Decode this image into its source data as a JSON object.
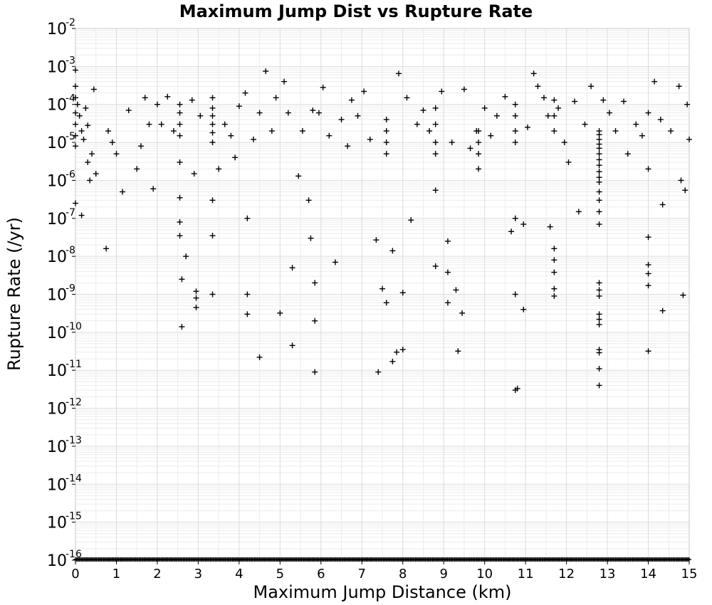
{
  "chart_data": {
    "type": "scatter",
    "title": "Maximum Jump Dist vs Rupture Rate",
    "xlabel": "Maximum Jump Distance (km)",
    "ylabel": "Rupture Rate (/yr)",
    "xlim": [
      0,
      15
    ],
    "ylim": [
      1e-16,
      0.01
    ],
    "yscale": "log",
    "grid": true,
    "legend": "none",
    "marker": "plus",
    "marker_color": "#000000",
    "x_ticks": [
      "0",
      "1",
      "2",
      "3",
      "4",
      "5",
      "6",
      "7",
      "8",
      "9",
      "10",
      "11",
      "12",
      "13",
      "14",
      "15"
    ],
    "y_ticks": [
      {
        "base": "10",
        "exp": "-2"
      },
      {
        "base": "10",
        "exp": "-3"
      },
      {
        "base": "10",
        "exp": "-4"
      },
      {
        "base": "10",
        "exp": "-5"
      },
      {
        "base": "10",
        "exp": "-6"
      },
      {
        "base": "10",
        "exp": "-7"
      },
      {
        "base": "10",
        "exp": "-8"
      },
      {
        "base": "10",
        "exp": "-9"
      },
      {
        "base": "10",
        "exp": "-10"
      },
      {
        "base": "10",
        "exp": "-11"
      },
      {
        "base": "10",
        "exp": "-12"
      },
      {
        "base": "10",
        "exp": "-13"
      },
      {
        "base": "10",
        "exp": "-14"
      },
      {
        "base": "10",
        "exp": "-15"
      },
      {
        "base": "10",
        "exp": "-16"
      }
    ],
    "points": [
      [
        0.0,
        0.0008
      ],
      [
        0.0,
        0.0003
      ],
      [
        0.0,
        0.00015
      ],
      [
        0.0,
        6e-05
      ],
      [
        0.0,
        3e-05
      ],
      [
        0.0,
        1.5e-05
      ],
      [
        0.0,
        8e-06
      ],
      [
        0.0,
        2.5e-07
      ],
      [
        0.05,
        0.0001
      ],
      [
        0.1,
        5e-05
      ],
      [
        0.15,
        2e-05
      ],
      [
        0.2,
        1.2e-05
      ],
      [
        0.25,
        8e-05
      ],
      [
        0.3,
        3e-06
      ],
      [
        0.35,
        1e-06
      ],
      [
        0.4,
        5e-06
      ],
      [
        0.45,
        0.00025
      ],
      [
        0.5,
        1.5e-06
      ],
      [
        0.15,
        1.2e-07
      ],
      [
        0.3,
        2.8e-05
      ],
      [
        0.75,
        1.6e-08
      ],
      [
        0.8,
        2e-05
      ],
      [
        0.9,
        1e-05
      ],
      [
        1.0,
        5e-06
      ],
      [
        1.15,
        5e-07
      ],
      [
        1.3,
        7e-05
      ],
      [
        1.5,
        2e-06
      ],
      [
        1.6,
        8e-06
      ],
      [
        1.7,
        0.00015
      ],
      [
        1.8,
        3e-05
      ],
      [
        1.9,
        6e-07
      ],
      [
        2.0,
        0.0001
      ],
      [
        2.1,
        3e-05
      ],
      [
        2.25,
        0.00016
      ],
      [
        2.4,
        2e-05
      ],
      [
        2.55,
        0.0001
      ],
      [
        2.55,
        6e-05
      ],
      [
        2.55,
        3e-05
      ],
      [
        2.55,
        1.5e-05
      ],
      [
        2.55,
        3e-06
      ],
      [
        2.55,
        3.5e-07
      ],
      [
        2.55,
        8e-08
      ],
      [
        2.55,
        3.5e-08
      ],
      [
        2.6,
        2.5e-09
      ],
      [
        2.6,
        1.4e-10
      ],
      [
        2.7,
        1e-08
      ],
      [
        2.85,
        0.00013
      ],
      [
        2.9,
        1.5e-06
      ],
      [
        2.95,
        1.2e-09
      ],
      [
        2.95,
        8e-10
      ],
      [
        2.95,
        4.5e-10
      ],
      [
        3.05,
        5e-05
      ],
      [
        3.35,
        0.00015
      ],
      [
        3.35,
        8e-05
      ],
      [
        3.35,
        5e-05
      ],
      [
        3.35,
        3e-05
      ],
      [
        3.35,
        1.8e-05
      ],
      [
        3.35,
        1e-05
      ],
      [
        3.35,
        3e-07
      ],
      [
        3.35,
        3.5e-08
      ],
      [
        3.35,
        1e-09
      ],
      [
        3.5,
        2e-06
      ],
      [
        3.65,
        3e-05
      ],
      [
        3.8,
        1.5e-05
      ],
      [
        3.9,
        4e-06
      ],
      [
        4.0,
        9e-05
      ],
      [
        4.15,
        0.0002
      ],
      [
        4.2,
        1e-09
      ],
      [
        4.2,
        3e-10
      ],
      [
        4.2,
        1e-07
      ],
      [
        4.35,
        1.2e-05
      ],
      [
        4.5,
        6e-05
      ],
      [
        4.5,
        2.2e-11
      ],
      [
        4.65,
        0.00075
      ],
      [
        4.8,
        2e-05
      ],
      [
        4.9,
        0.00015
      ],
      [
        5.0,
        3.2e-10
      ],
      [
        5.1,
        0.0004
      ],
      [
        5.2,
        6e-05
      ],
      [
        5.3,
        5e-09
      ],
      [
        5.3,
        4.5e-11
      ],
      [
        5.45,
        1.3e-06
      ],
      [
        5.55,
        2e-05
      ],
      [
        5.7,
        3e-07
      ],
      [
        5.75,
        3e-08
      ],
      [
        5.8,
        7e-05
      ],
      [
        5.85,
        2e-09
      ],
      [
        5.85,
        2e-10
      ],
      [
        5.85,
        9e-12
      ],
      [
        5.95,
        6e-05
      ],
      [
        6.05,
        0.00028
      ],
      [
        6.2,
        1.5e-05
      ],
      [
        6.35,
        7e-09
      ],
      [
        6.5,
        4e-05
      ],
      [
        6.65,
        8e-06
      ],
      [
        6.75,
        0.00013
      ],
      [
        6.9,
        5e-05
      ],
      [
        7.05,
        0.00022
      ],
      [
        7.2,
        1.2e-05
      ],
      [
        7.35,
        2.7e-08
      ],
      [
        7.4,
        9e-12
      ],
      [
        7.5,
        1.4e-09
      ],
      [
        7.6,
        4e-05
      ],
      [
        7.6,
        2e-05
      ],
      [
        7.6,
        1e-05
      ],
      [
        7.6,
        5e-06
      ],
      [
        7.6,
        6e-10
      ],
      [
        7.75,
        1.4e-08
      ],
      [
        7.75,
        1.7e-11
      ],
      [
        7.85,
        3e-11
      ],
      [
        7.9,
        0.00065
      ],
      [
        8.0,
        1.1e-09
      ],
      [
        8.0,
        3.5e-11
      ],
      [
        8.1,
        0.00015
      ],
      [
        8.2,
        9e-08
      ],
      [
        8.35,
        3e-05
      ],
      [
        8.5,
        7e-05
      ],
      [
        8.65,
        2e-05
      ],
      [
        8.8,
        8e-05
      ],
      [
        8.8,
        3e-05
      ],
      [
        8.8,
        1e-05
      ],
      [
        8.8,
        5e-06
      ],
      [
        8.8,
        5.5e-07
      ],
      [
        8.8,
        5.5e-09
      ],
      [
        8.95,
        0.00022
      ],
      [
        9.1,
        2.5e-08
      ],
      [
        9.1,
        6e-10
      ],
      [
        9.1,
        3.8e-09
      ],
      [
        9.2,
        1e-05
      ],
      [
        9.3,
        1.3e-09
      ],
      [
        9.35,
        3.2e-11
      ],
      [
        9.45,
        3.2e-10
      ],
      [
        9.5,
        0.00025
      ],
      [
        9.65,
        7e-06
      ],
      [
        9.8,
        2e-05
      ],
      [
        9.85,
        2e-05
      ],
      [
        9.85,
        1e-05
      ],
      [
        9.85,
        5e-06
      ],
      [
        9.85,
        2e-06
      ],
      [
        10.0,
        8e-05
      ],
      [
        10.15,
        1.5e-05
      ],
      [
        10.3,
        5e-05
      ],
      [
        10.5,
        0.00016
      ],
      [
        10.65,
        4.5e-08
      ],
      [
        10.75,
        0.0001
      ],
      [
        10.75,
        5e-05
      ],
      [
        10.75,
        2e-05
      ],
      [
        10.75,
        1e-05
      ],
      [
        10.75,
        1e-07
      ],
      [
        10.75,
        1e-09
      ],
      [
        10.75,
        3e-12
      ],
      [
        10.8,
        3.3e-12
      ],
      [
        10.95,
        4e-10
      ],
      [
        10.95,
        7e-08
      ],
      [
        11.05,
        2.5e-05
      ],
      [
        11.2,
        0.00065
      ],
      [
        11.3,
        0.0003
      ],
      [
        11.45,
        0.00015
      ],
      [
        11.55,
        5e-05
      ],
      [
        11.6,
        6e-08
      ],
      [
        11.7,
        0.00013
      ],
      [
        11.7,
        5e-05
      ],
      [
        11.7,
        2e-05
      ],
      [
        11.7,
        1.6e-08
      ],
      [
        11.7,
        8e-09
      ],
      [
        11.7,
        3.8e-09
      ],
      [
        11.7,
        1.4e-09
      ],
      [
        11.7,
        9e-10
      ],
      [
        11.8,
        8e-05
      ],
      [
        11.95,
        1e-05
      ],
      [
        12.05,
        3e-06
      ],
      [
        12.2,
        0.00012
      ],
      [
        12.3,
        1.5e-07
      ],
      [
        12.45,
        3e-05
      ],
      [
        12.6,
        0.0003
      ],
      [
        12.8,
        2e-05
      ],
      [
        12.8,
        1.6e-05
      ],
      [
        12.8,
        1.2e-05
      ],
      [
        12.8,
        9e-06
      ],
      [
        12.8,
        7e-06
      ],
      [
        12.8,
        5e-06
      ],
      [
        12.8,
        3.5e-06
      ],
      [
        12.8,
        2.5e-06
      ],
      [
        12.8,
        1.7e-06
      ],
      [
        12.8,
        1.2e-06
      ],
      [
        12.8,
        9e-07
      ],
      [
        12.8,
        5e-07
      ],
      [
        12.8,
        3e-07
      ],
      [
        12.8,
        1.5e-07
      ],
      [
        12.8,
        7e-08
      ],
      [
        12.8,
        2e-09
      ],
      [
        12.8,
        1.3e-09
      ],
      [
        12.8,
        9e-10
      ],
      [
        12.8,
        3e-10
      ],
      [
        12.8,
        2.2e-10
      ],
      [
        12.8,
        1.6e-10
      ],
      [
        12.8,
        3.5e-11
      ],
      [
        12.8,
        2.9e-11
      ],
      [
        12.8,
        1.1e-11
      ],
      [
        12.8,
        4e-12
      ],
      [
        12.9,
        0.00013
      ],
      [
        13.05,
        6e-05
      ],
      [
        13.2,
        2e-05
      ],
      [
        13.4,
        0.00012
      ],
      [
        13.5,
        5e-06
      ],
      [
        13.7,
        3e-05
      ],
      [
        13.85,
        1.5e-05
      ],
      [
        14.0,
        2e-06
      ],
      [
        14.0,
        6e-05
      ],
      [
        14.0,
        3.2e-08
      ],
      [
        14.0,
        6e-09
      ],
      [
        14.0,
        3.5e-09
      ],
      [
        14.0,
        1.7e-09
      ],
      [
        14.0,
        3.2e-11
      ],
      [
        14.15,
        0.0004
      ],
      [
        14.3,
        4e-05
      ],
      [
        14.35,
        2.3e-07
      ],
      [
        14.35,
        3.7e-10
      ],
      [
        14.55,
        2e-05
      ],
      [
        14.75,
        0.0003
      ],
      [
        14.8,
        1e-06
      ],
      [
        14.85,
        9.5e-10
      ],
      [
        14.9,
        5.5e-07
      ],
      [
        14.95,
        0.0001
      ],
      [
        15.0,
        1.2e-05
      ]
    ],
    "floor_value": 1e-16
  }
}
